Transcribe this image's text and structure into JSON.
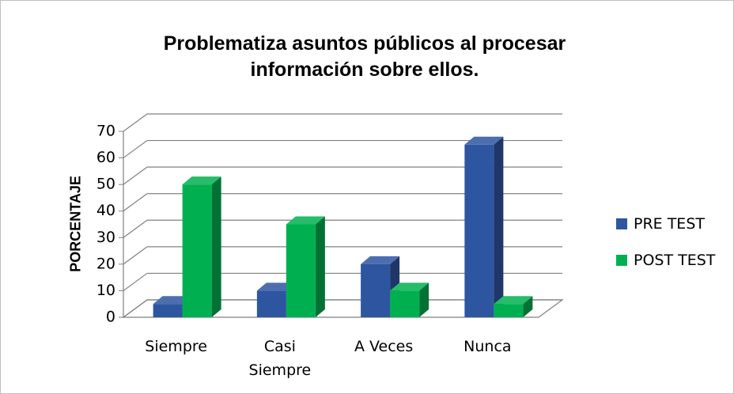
{
  "chart_data": {
    "type": "bar3d",
    "title": "Problematiza asuntos públicos al procesar información sobre ellos.",
    "ylabel": "PORCENTAJE",
    "categories": [
      "Siempre",
      "Casi Siempre",
      "A Veces",
      "Nunca"
    ],
    "series": [
      {
        "name": "PRE TEST",
        "color": "#2e55a0",
        "values": [
          5,
          10,
          20,
          65
        ]
      },
      {
        "name": "POST TEST",
        "color": "#00b050",
        "values": [
          50,
          35,
          10,
          5
        ]
      }
    ],
    "ylim": [
      0,
      70
    ],
    "yticks": [
      0,
      10,
      20,
      30,
      40,
      50,
      60,
      70
    ],
    "grid": true,
    "legend": "right"
  }
}
